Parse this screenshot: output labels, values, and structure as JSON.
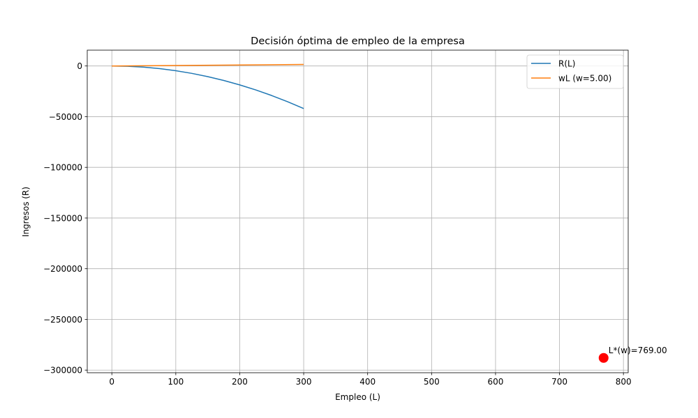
{
  "chart_data": {
    "type": "line",
    "title": "Decisión óptima de empleo de la empresa",
    "xlabel": "Empleo (L)",
    "ylabel": "Ingresos (R)",
    "xlim": [
      -38.45,
      807.45
    ],
    "ylim": [
      -302600,
      15600
    ],
    "x_ticks": [
      0,
      100,
      200,
      300,
      400,
      500,
      600,
      700,
      800
    ],
    "x_tick_labels": [
      "0",
      "100",
      "200",
      "300",
      "400",
      "500",
      "600",
      "700",
      "800"
    ],
    "y_ticks": [
      0,
      -50000,
      -100000,
      -150000,
      -200000,
      -250000,
      -300000
    ],
    "y_tick_labels": [
      "0",
      "−50000",
      "−100000",
      "−150000",
      "−200000",
      "−250000",
      "−300000"
    ],
    "grid": true,
    "legend_position": "top-right",
    "series": [
      {
        "name": "R(L)",
        "color": "#1f77b4",
        "x": [
          0,
          25,
          50,
          75,
          100,
          125,
          150,
          175,
          200,
          225,
          250,
          275,
          300
        ],
        "y": [
          0,
          -292,
          -1167,
          -2625,
          -4667,
          -7292,
          -10500,
          -14292,
          -18667,
          -23625,
          -29167,
          -35292,
          -42000
        ]
      },
      {
        "name": "wL (w=5.00)",
        "color": "#ff7f0e",
        "x": [
          0,
          300
        ],
        "y": [
          0,
          1500
        ]
      }
    ],
    "points": [
      {
        "x": 769,
        "y": -288000,
        "color": "#ff0000",
        "label": "L*(w)=769.00"
      }
    ]
  }
}
